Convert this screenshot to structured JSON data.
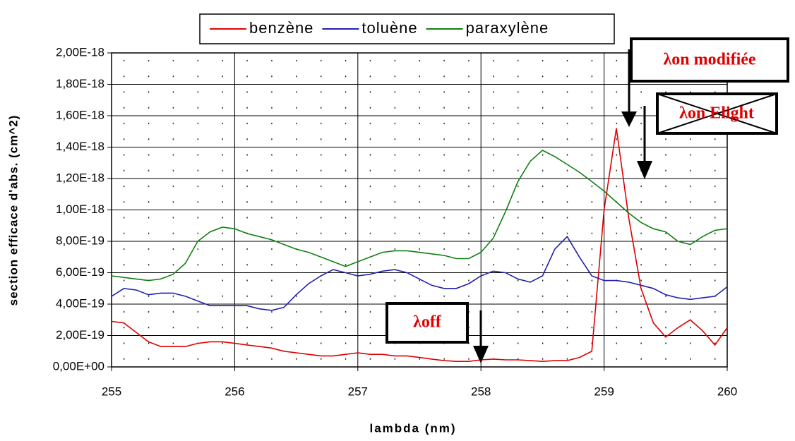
{
  "chart_data": {
    "type": "line",
    "x_label": "lambda (nm)",
    "y_label": "section efficace d'abs. (cm^2)",
    "x": [
      255.0,
      255.1,
      255.2,
      255.3,
      255.4,
      255.5,
      255.6,
      255.7,
      255.8,
      255.9,
      256.0,
      256.1,
      256.2,
      256.3,
      256.4,
      256.5,
      256.6,
      256.7,
      256.8,
      256.9,
      257.0,
      257.1,
      257.2,
      257.3,
      257.4,
      257.5,
      257.6,
      257.7,
      257.8,
      257.9,
      258.0,
      258.1,
      258.2,
      258.3,
      258.4,
      258.5,
      258.6,
      258.7,
      258.8,
      258.9,
      259.0,
      259.1,
      259.2,
      259.3,
      259.4,
      259.5,
      259.6,
      259.7,
      259.8,
      259.9,
      260.0
    ],
    "series": [
      {
        "name": "benzène",
        "color": "#e00000",
        "values": [
          2.9e-19,
          2.8e-19,
          2.2e-19,
          1.6e-19,
          1.3e-19,
          1.3e-19,
          1.3e-19,
          1.5e-19,
          1.6e-19,
          1.6e-19,
          1.5e-19,
          1.4e-19,
          1.3e-19,
          1.2e-19,
          1e-19,
          9e-20,
          8e-20,
          7e-20,
          7e-20,
          8e-20,
          9e-20,
          8e-20,
          8e-20,
          7e-20,
          7e-20,
          6e-20,
          5e-20,
          4e-20,
          3.5e-20,
          3.5e-20,
          4.5e-20,
          5e-20,
          4.5e-20,
          4.5e-20,
          4e-20,
          3.5e-20,
          4e-20,
          4e-20,
          6e-20,
          1e-19,
          1e-18,
          1.52e-18,
          9.5e-19,
          5e-19,
          2.8e-19,
          1.9e-19,
          2.5e-19,
          3e-19,
          2.3e-19,
          1.4e-19,
          2.5e-19
        ]
      },
      {
        "name": "toluène",
        "color": "#2020b0",
        "values": [
          4.5e-19,
          5e-19,
          4.9e-19,
          4.6e-19,
          4.7e-19,
          4.7e-19,
          4.5e-19,
          4.2e-19,
          3.9e-19,
          3.9e-19,
          3.9e-19,
          3.9e-19,
          3.7e-19,
          3.6e-19,
          3.8e-19,
          4.6e-19,
          5.3e-19,
          5.8e-19,
          6.2e-19,
          6e-19,
          5.8e-19,
          5.9e-19,
          6.1e-19,
          6.2e-19,
          6e-19,
          5.6e-19,
          5.2e-19,
          5e-19,
          5e-19,
          5.3e-19,
          5.8e-19,
          6.1e-19,
          6e-19,
          5.6e-19,
          5.4e-19,
          5.8e-19,
          7.5e-19,
          8.3e-19,
          7e-19,
          5.8e-19,
          5.5e-19,
          5.5e-19,
          5.4e-19,
          5.2e-19,
          5e-19,
          4.6e-19,
          4.4e-19,
          4.3e-19,
          4.4e-19,
          4.5e-19,
          5.1e-19
        ]
      },
      {
        "name": "paraxylène",
        "color": "#108010",
        "values": [
          5.8e-19,
          5.7e-19,
          5.6e-19,
          5.5e-19,
          5.6e-19,
          5.9e-19,
          6.6e-19,
          8e-19,
          8.6e-19,
          8.9e-19,
          8.8e-19,
          8.5e-19,
          8.3e-19,
          8.1e-19,
          7.8e-19,
          7.5e-19,
          7.3e-19,
          7e-19,
          6.7e-19,
          6.4e-19,
          6.7e-19,
          7e-19,
          7.3e-19,
          7.4e-19,
          7.4e-19,
          7.3e-19,
          7.2e-19,
          7.1e-19,
          6.9e-19,
          6.9e-19,
          7.3e-19,
          8.2e-19,
          9.9e-19,
          1.18e-18,
          1.31e-18,
          1.38e-18,
          1.34e-18,
          1.29e-18,
          1.24e-18,
          1.18e-18,
          1.12e-18,
          1.05e-18,
          9.8e-19,
          9.2e-19,
          8.8e-19,
          8.6e-19,
          8e-19,
          7.8e-19,
          8.3e-19,
          8.7e-19,
          8.8e-19
        ]
      }
    ],
    "xlim": [
      255,
      260
    ],
    "xticks": [
      255,
      256,
      257,
      258,
      259,
      260
    ],
    "ylim": [
      0,
      2e-18
    ],
    "yticks": [
      {
        "value": 0,
        "label": "0,00E+00"
      },
      {
        "value": 2e-19,
        "label": "2,00E-19"
      },
      {
        "value": 4e-19,
        "label": "4,00E-19"
      },
      {
        "value": 6e-19,
        "label": "6,00E-19"
      },
      {
        "value": 8e-19,
        "label": "8,00E-19"
      },
      {
        "value": 1e-18,
        "label": "1,00E-18"
      },
      {
        "value": 1.2e-18,
        "label": "1,20E-18"
      },
      {
        "value": 1.4e-18,
        "label": "1,40E-18"
      },
      {
        "value": 1.6e-18,
        "label": "1,60E-18"
      },
      {
        "value": 1.8e-18,
        "label": "1,80E-18"
      },
      {
        "value": 2e-18,
        "label": "2,00E-18"
      }
    ],
    "grid": true,
    "legend": "top",
    "annotations": [
      "λon modifiée",
      "λon Elight",
      "λoff"
    ]
  }
}
